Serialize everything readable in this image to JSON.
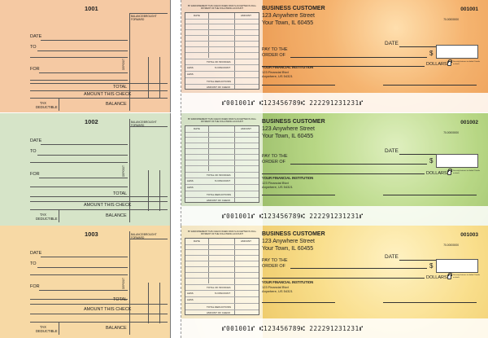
{
  "stub_labels": {
    "date": "DATE",
    "to": "TO",
    "for": "FOR",
    "deposit": "DEPOSIT",
    "balance_forward": "BALANCE/BROUGHT FORWARD",
    "total": "TOTAL",
    "amount_this_check": "AMOUNT THIS CHECK",
    "tax_deductible": "TAX DEDUCTIBLE",
    "balance": "BALANCE"
  },
  "check_labels": {
    "business_name": "BUSINESS CUSTOMER",
    "address_line1": "123 Anywhere Street",
    "address_line2": "Your Town, IL 60455",
    "routing_fraction": "70-00000000",
    "date": "DATE",
    "pay_to": "PAY TO THE ORDER OF",
    "dollar_sign": "$",
    "dollars": "DOLLARS",
    "security_note": "Security features included. Details on back.",
    "bank_name": "YOUR FINANCIAL INSTITUTION",
    "bank_address1": "123 Financial Blvd",
    "bank_address2": "Anywhere, US 54321",
    "micr_line": "⑈001001⑈ ⑆123456789⑆ 222291231231⑈"
  },
  "voucher": {
    "header_note": "BY ENDORSEMENT THIS CHECK WHEN PAID IS ACCEPTED IN FULL PAYMENT OF THE FOLLOWING ACCOUNT",
    "col_date": "DATE",
    "col_amount": "AMOUNT",
    "total_invoices": "TOTAL OF INVOICES",
    "less_discount": "% DISCOUNT",
    "less1": "LESS",
    "less2": "LESS",
    "total_deductions": "TOTAL DEDUCTIONS",
    "amount_of_check": "AMOUNT OF CHECK"
  },
  "checks": [
    {
      "number": "1001",
      "check_number": "001001",
      "theme": "orange",
      "color": "#f5c9a3"
    },
    {
      "number": "1002",
      "check_number": "001002",
      "theme": "green apple",
      "color": "#d6e4c8"
    },
    {
      "number": "1003",
      "check_number": "001003",
      "theme": "banana",
      "color": "#f7d9a5"
    }
  ]
}
